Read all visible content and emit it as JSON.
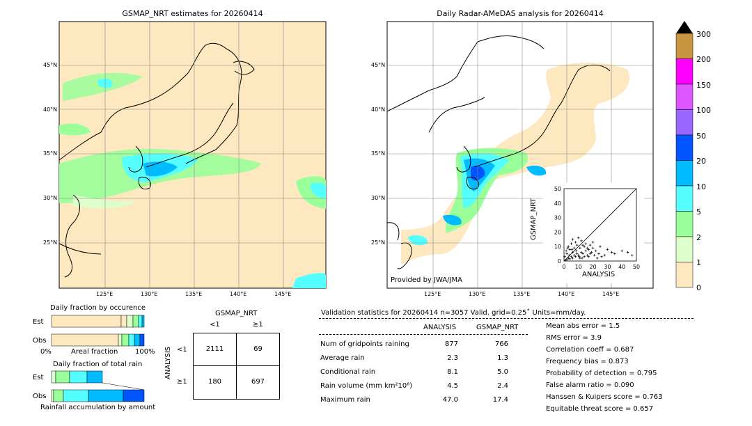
{
  "maps": {
    "left_title": "GSMAP_NRT estimates for 20260414",
    "right_title": "Daily Radar-AMeDAS analysis for 20260414",
    "provider_credit": "Provided by JWA/JMA",
    "lat_labels": [
      "45°N",
      "40°N",
      "35°N",
      "30°N",
      "25°N"
    ],
    "lon_labels": [
      "125°E",
      "130°E",
      "135°E",
      "140°E",
      "145°E"
    ]
  },
  "colorbar": {
    "labels": [
      "300",
      "200",
      "150",
      "100",
      "50",
      "20",
      "10",
      "5",
      "2",
      "1",
      "0"
    ],
    "colors": [
      "#c89640",
      "#ff00ff",
      "#dd55ff",
      "#9966ff",
      "#0055ff",
      "#00bbff",
      "#55ffff",
      "#99ff99",
      "#ddffcc",
      "#fde8c0"
    ]
  },
  "occurrence": {
    "title": "Daily fraction by occurence",
    "rows": [
      "Est",
      "Obs"
    ],
    "axis_left": "0%",
    "axis_mid": "Areal fraction",
    "axis_right": "100%"
  },
  "total_rain": {
    "title": "Daily fraction of total rain",
    "rows": [
      "Est",
      "Obs"
    ],
    "axis_label": "Rainfall accumulation by amount"
  },
  "contingency": {
    "col_header": "GSMAP_NRT",
    "col_lt": "<1",
    "col_ge": "≥1",
    "row_header": "ANALYSIS",
    "row_lt": "<1",
    "row_ge": "≥1",
    "cells": [
      "2111",
      "69",
      "180",
      "697"
    ]
  },
  "validation": {
    "header": "Validation statistics for 20260414  n=3057 Valid. grid=0.25˚ Units=mm/day.",
    "col_analysis": "ANALYSIS",
    "col_gsmap": "GSMAP_NRT",
    "rows": [
      {
        "label": "Num of gridpoints raining",
        "analysis": "877",
        "gsmap": "766"
      },
      {
        "label": "Average rain",
        "analysis": "2.3",
        "gsmap": "1.3"
      },
      {
        "label": "Conditional rain",
        "analysis": "8.1",
        "gsmap": "5.0"
      },
      {
        "label": "Rain volume (mm km²10⁶)",
        "analysis": "4.5",
        "gsmap": "2.4"
      },
      {
        "label": "Maximum rain",
        "analysis": "47.0",
        "gsmap": "17.4"
      }
    ],
    "scores": [
      "Mean abs error =    1.5",
      "RMS error =    3.9",
      "Correlation coeff =  0.687",
      "Frequency bias =  0.873",
      "Probability of detection =  0.795",
      "False alarm ratio =  0.090",
      "Hanssen & Kuipers score =  0.763",
      "Equitable threat score =  0.657"
    ]
  },
  "chart_data": {
    "type": "scatter",
    "xlabel": "ANALYSIS",
    "ylabel": "GSMAP_NRT",
    "xlim": [
      0,
      50
    ],
    "ylim": [
      0,
      50
    ],
    "ticks": [
      "0",
      "10",
      "20",
      "30",
      "40",
      "50"
    ],
    "points": [
      [
        1,
        0.5
      ],
      [
        2,
        1
      ],
      [
        3,
        2
      ],
      [
        4,
        1.5
      ],
      [
        5,
        3
      ],
      [
        6,
        2
      ],
      [
        7,
        4
      ],
      [
        8,
        3
      ],
      [
        9,
        5
      ],
      [
        10,
        4
      ],
      [
        11,
        2
      ],
      [
        12,
        6
      ],
      [
        13,
        5
      ],
      [
        14,
        3
      ],
      [
        15,
        7
      ],
      [
        16,
        4
      ],
      [
        17,
        8
      ],
      [
        18,
        5
      ],
      [
        19,
        6
      ],
      [
        20,
        9
      ],
      [
        22,
        7
      ],
      [
        24,
        5
      ],
      [
        26,
        3
      ],
      [
        28,
        4
      ],
      [
        30,
        8
      ],
      [
        33,
        6
      ],
      [
        35,
        5
      ],
      [
        40,
        7
      ],
      [
        44,
        6
      ],
      [
        47,
        4
      ],
      [
        3,
        10
      ],
      [
        5,
        12
      ],
      [
        7,
        9
      ],
      [
        9,
        11
      ],
      [
        12,
        14
      ],
      [
        14,
        10
      ],
      [
        8,
        13
      ],
      [
        6,
        15
      ],
      [
        10,
        16
      ],
      [
        15,
        12
      ],
      [
        18,
        11
      ],
      [
        2,
        5
      ],
      [
        4,
        8
      ],
      [
        6,
        6
      ],
      [
        11,
        9
      ],
      [
        13,
        11
      ],
      [
        16,
        9
      ],
      [
        20,
        13
      ],
      [
        25,
        10
      ],
      [
        0.5,
        3
      ],
      [
        1.5,
        7
      ],
      [
        2.5,
        9
      ],
      [
        3.5,
        4
      ],
      [
        5.5,
        8
      ],
      [
        8.5,
        7
      ],
      [
        10.5,
        3
      ],
      [
        12.5,
        2
      ],
      [
        17,
        3
      ],
      [
        21,
        4
      ],
      [
        23,
        2
      ]
    ]
  }
}
